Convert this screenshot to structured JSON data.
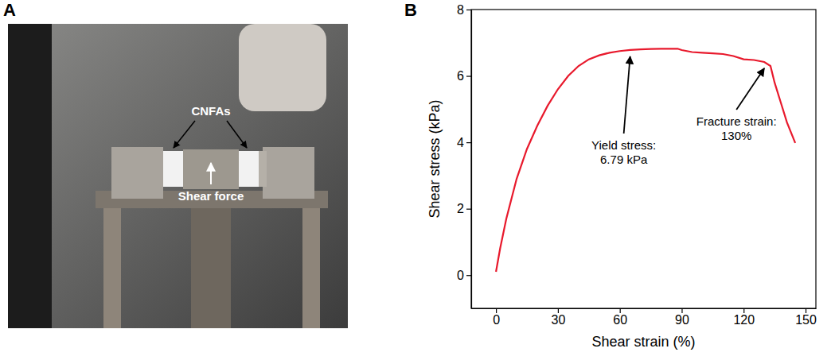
{
  "photo": {
    "panel_label": "A",
    "labels": [
      "CNFAs",
      "Shear force"
    ]
  },
  "chart_data": {
    "type": "line",
    "panel_label": "B",
    "x_label": "Shear strain (%)",
    "y_label": "Shear stress (kPa)",
    "x": [
      0,
      2,
      5,
      10,
      15,
      20,
      25,
      30,
      35,
      40,
      45,
      50,
      55,
      60,
      65,
      70,
      75,
      80,
      85,
      88,
      90,
      95,
      100,
      105,
      110,
      115,
      120,
      125,
      130,
      133,
      135,
      138,
      141,
      145
    ],
    "values": [
      0.1,
      0.8,
      1.7,
      2.9,
      3.8,
      4.5,
      5.1,
      5.6,
      6.0,
      6.3,
      6.5,
      6.62,
      6.7,
      6.75,
      6.78,
      6.8,
      6.81,
      6.82,
      6.82,
      6.82,
      6.78,
      6.72,
      6.7,
      6.68,
      6.66,
      6.6,
      6.5,
      6.48,
      6.42,
      6.3,
      5.8,
      5.2,
      4.6,
      3.98
    ],
    "color": "#e8192c",
    "xlim": [
      -12,
      155
    ],
    "xticks": [
      0,
      30,
      60,
      90,
      120,
      150
    ],
    "ylim": [
      -1,
      8
    ],
    "yticks": [
      0,
      2,
      4,
      6,
      8
    ],
    "grid": false,
    "annotations": [
      {
        "text": [
          "Yield stress:",
          "6.79 kPa"
        ],
        "x": 65,
        "y": 6.78
      },
      {
        "text": [
          "Fracture strain:",
          "130%"
        ],
        "x": 130,
        "y": 6.42
      }
    ]
  }
}
